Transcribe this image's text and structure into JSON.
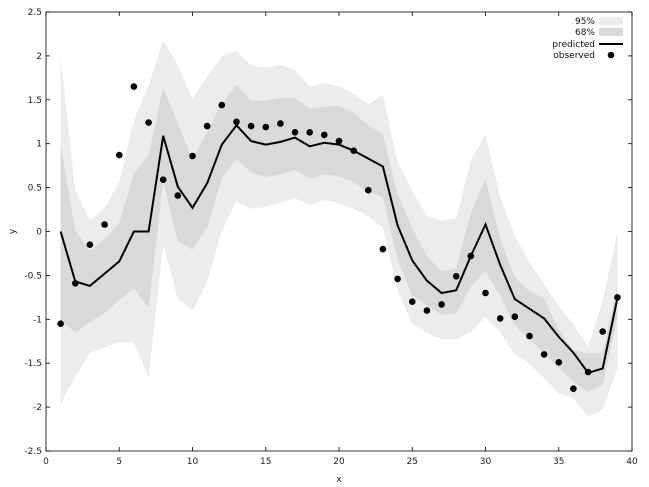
{
  "chart_data": {
    "type": "line",
    "title": "",
    "xlabel": "x",
    "ylabel": "y",
    "xlim": [
      0,
      40
    ],
    "ylim": [
      -2.5,
      2.5
    ],
    "xticks": [
      0,
      5,
      10,
      15,
      20,
      25,
      30,
      35,
      40
    ],
    "yticks": [
      -2.5,
      -2,
      -1.5,
      -1,
      -0.5,
      0,
      0.5,
      1,
      1.5,
      2,
      2.5
    ],
    "grid": false,
    "legend_position": "top-right",
    "legend": [
      {
        "label": "95%",
        "kind": "band-95"
      },
      {
        "label": "68%",
        "kind": "band-68"
      },
      {
        "label": "predicted",
        "kind": "line"
      },
      {
        "label": "observed",
        "kind": "marker"
      }
    ],
    "colors": {
      "band95": "#ececec",
      "band68": "#d9d9d9",
      "line": "#000000",
      "marker": "#000000"
    },
    "x": [
      1,
      2,
      3,
      4,
      5,
      6,
      7,
      8,
      9,
      10,
      11,
      12,
      13,
      14,
      15,
      16,
      17,
      18,
      19,
      20,
      21,
      22,
      23,
      24,
      25,
      26,
      27,
      28,
      29,
      30,
      31,
      32,
      33,
      34,
      35,
      36,
      37,
      38,
      39
    ],
    "series": [
      {
        "name": "95%",
        "lower": [
          -1.97,
          -1.65,
          -1.38,
          -1.32,
          -1.26,
          -1.26,
          -1.67,
          -0.15,
          -0.77,
          -0.9,
          -0.57,
          0.0,
          0.35,
          0.26,
          0.28,
          0.33,
          0.38,
          0.3,
          0.36,
          0.32,
          0.26,
          0.17,
          0.04,
          -0.67,
          -1.05,
          -1.15,
          -1.23,
          -1.23,
          -1.14,
          -0.97,
          -1.15,
          -1.4,
          -1.51,
          -1.67,
          -1.84,
          -1.9,
          -2.11,
          -2.03,
          -1.56
        ],
        "upper": [
          1.99,
          0.47,
          0.13,
          0.27,
          0.57,
          1.27,
          1.66,
          2.18,
          1.9,
          1.5,
          1.77,
          1.99,
          2.06,
          1.89,
          1.87,
          1.9,
          1.84,
          1.65,
          1.69,
          1.66,
          1.57,
          1.45,
          1.56,
          0.79,
          0.46,
          0.18,
          0.12,
          0.15,
          0.81,
          1.11,
          0.4,
          -0.05,
          -0.35,
          -0.6,
          -0.85,
          -1.06,
          -1.31,
          -0.79,
          0.0
        ]
      },
      {
        "name": "68%",
        "lower": [
          -1.01,
          -1.15,
          -1.03,
          -0.93,
          -0.78,
          -0.65,
          -0.87,
          0.57,
          -0.11,
          -0.21,
          0.05,
          0.6,
          0.83,
          0.67,
          0.62,
          0.65,
          0.7,
          0.6,
          0.65,
          0.63,
          0.56,
          0.45,
          0.39,
          -0.32,
          -0.73,
          -0.84,
          -0.95,
          -0.93,
          -0.63,
          -0.45,
          -0.73,
          -1.07,
          -1.23,
          -1.39,
          -1.55,
          -1.71,
          -1.83,
          -1.75,
          -0.96
        ]
      },
      {
        "name": "68%-upper",
        "upper": [
          1.0,
          0.01,
          -0.22,
          -0.09,
          0.1,
          0.66,
          0.87,
          1.64,
          1.23,
          0.82,
          1.14,
          1.46,
          1.67,
          1.49,
          1.49,
          1.52,
          1.52,
          1.4,
          1.42,
          1.43,
          1.35,
          1.21,
          1.11,
          0.42,
          0.04,
          -0.28,
          -0.46,
          -0.42,
          0.21,
          0.6,
          -0.09,
          -0.52,
          -0.68,
          -0.76,
          -1.12,
          -1.35,
          -1.39,
          -1.38,
          -0.63
        ]
      },
      {
        "name": "predicted",
        "values": [
          0.0,
          -0.57,
          -0.62,
          -0.48,
          -0.34,
          0.0,
          0.0,
          1.09,
          0.51,
          0.27,
          0.55,
          0.99,
          1.21,
          1.03,
          0.99,
          1.02,
          1.07,
          0.97,
          1.01,
          0.99,
          0.92,
          0.83,
          0.74,
          0.07,
          -0.33,
          -0.56,
          -0.7,
          -0.67,
          -0.28,
          0.08,
          -0.38,
          -0.77,
          -0.88,
          -0.99,
          -1.2,
          -1.38,
          -1.61,
          -1.56,
          -0.76
        ]
      },
      {
        "name": "observed",
        "values": [
          -1.05,
          -0.59,
          -0.15,
          0.08,
          0.87,
          1.65,
          1.24,
          0.59,
          0.41,
          0.86,
          1.2,
          1.44,
          1.25,
          1.2,
          1.19,
          1.23,
          1.13,
          1.13,
          1.1,
          1.03,
          0.92,
          0.47,
          -0.2,
          -0.54,
          -0.8,
          -0.9,
          -0.83,
          -0.51,
          -0.28,
          -0.7,
          -0.99,
          -0.97,
          -1.19,
          -1.4,
          -1.49,
          -1.79,
          -1.6,
          -1.14,
          -0.75
        ]
      }
    ]
  }
}
